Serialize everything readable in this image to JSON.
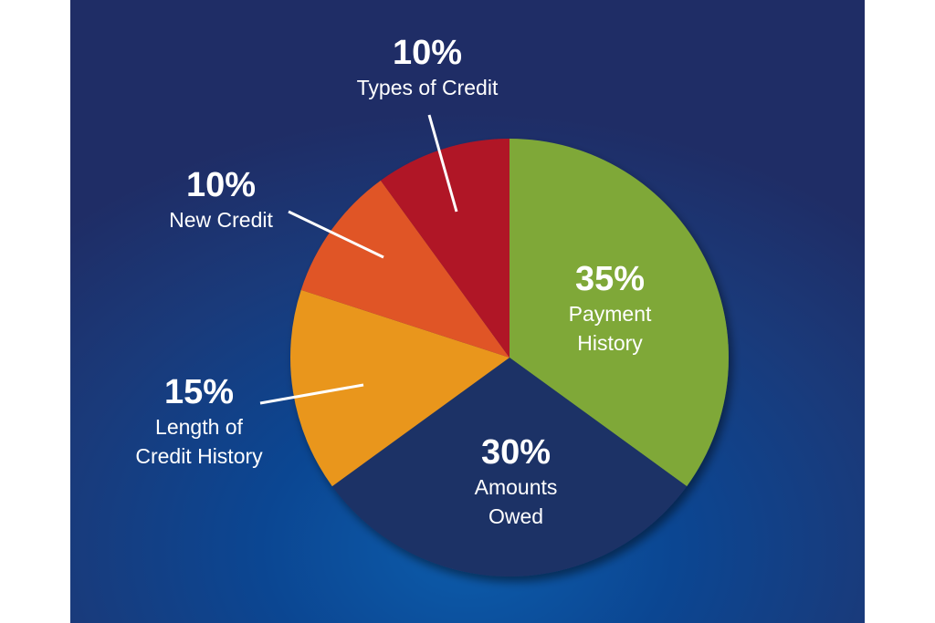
{
  "chart_data": {
    "type": "pie",
    "slices": [
      {
        "percent_label": "35%",
        "value": 35,
        "label_lines": [
          "Payment",
          "History"
        ],
        "color": "#7fa839"
      },
      {
        "percent_label": "30%",
        "value": 30,
        "label_lines": [
          "Amounts",
          "Owed"
        ],
        "color": "#1e3266"
      },
      {
        "percent_label": "15%",
        "value": 15,
        "label_lines": [
          "Length of",
          "Credit History"
        ],
        "color": "#e9961f"
      },
      {
        "percent_label": "10%",
        "value": 10,
        "label_lines": [
          "New Credit"
        ],
        "color": "#e05428"
      },
      {
        "percent_label": "10%",
        "value": 10,
        "label_lines": [
          "Types of Credit"
        ],
        "color": "#b01528"
      }
    ],
    "start": "top, clockwise",
    "background": "#0b4692"
  }
}
